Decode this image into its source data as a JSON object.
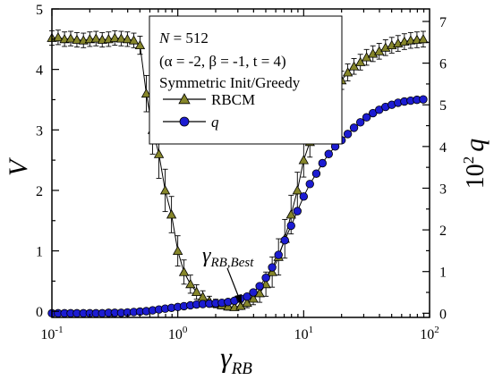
{
  "chart_data": {
    "type": "line",
    "xlabel": "γ",
    "xlabel_sub": "RB",
    "ylabel_left": "V",
    "ylabel_right_base": "10",
    "ylabel_right_exp": "2",
    "ylabel_right_var": "q",
    "x_scale": "log",
    "xlim": [
      0.1,
      100
    ],
    "ylim_left": [
      -0.1,
      5.0
    ],
    "ylim_right": [
      -0.1,
      7.3
    ],
    "x_ticks": [
      0.1,
      1,
      10,
      100
    ],
    "x_tick_labels": [
      {
        "base": "10",
        "exp": "-1"
      },
      {
        "base": "10",
        "exp": "0"
      },
      {
        "base": "10",
        "exp": "1"
      },
      {
        "base": "10",
        "exp": "2"
      }
    ],
    "y_ticks_left": [
      "0",
      "1",
      "2",
      "3",
      "4",
      "5"
    ],
    "y_ticks_right": [
      "0",
      "1",
      "2",
      "3",
      "4",
      "5",
      "6",
      "7"
    ],
    "legend": {
      "line1_prefix": "N = 512",
      "line2": "(α = -2, β = -1, t = 4)",
      "line3": "Symmetric Init/Greedy",
      "entries": [
        "RBCM",
        "q"
      ]
    },
    "annotation": {
      "text": "γ",
      "sub": "RB,Best",
      "x": 2.9,
      "y": 0.08
    },
    "colors": {
      "rbcm_fill": "#86862a",
      "q_fill": "#1c1cd2",
      "line": "#000000"
    },
    "series": [
      {
        "name": "RBCM",
        "axis": "left",
        "marker": "triangle",
        "x": [
          0.1,
          0.112,
          0.126,
          0.141,
          0.158,
          0.178,
          0.2,
          0.224,
          0.251,
          0.282,
          0.316,
          0.355,
          0.398,
          0.447,
          0.501,
          0.562,
          0.631,
          0.708,
          0.794,
          0.891,
          1.0,
          1.12,
          1.26,
          1.41,
          1.58,
          1.78,
          2.0,
          2.24,
          2.51,
          2.82,
          3.16,
          3.55,
          3.98,
          4.47,
          5.01,
          5.62,
          6.31,
          7.08,
          7.94,
          8.91,
          10.0,
          11.2,
          12.6,
          14.1,
          15.8,
          17.8,
          20.0,
          22.4,
          25.1,
          28.2,
          31.6,
          35.5,
          39.8,
          44.7,
          50.1,
          56.2,
          63.1,
          70.8,
          79.4,
          89.1
        ],
        "y": [
          4.52,
          4.53,
          4.5,
          4.51,
          4.49,
          4.48,
          4.5,
          4.51,
          4.49,
          4.5,
          4.52,
          4.51,
          4.5,
          4.48,
          4.4,
          3.6,
          3.0,
          2.6,
          2.0,
          1.6,
          1.0,
          0.65,
          0.45,
          0.32,
          0.24,
          0.17,
          0.13,
          0.1,
          0.08,
          0.07,
          0.09,
          0.14,
          0.21,
          0.3,
          0.45,
          0.65,
          0.9,
          1.2,
          1.6,
          2.0,
          2.5,
          2.8,
          3.05,
          3.3,
          3.5,
          3.68,
          3.82,
          3.95,
          4.05,
          4.12,
          4.2,
          4.26,
          4.3,
          4.36,
          4.4,
          4.43,
          4.46,
          4.48,
          4.49,
          4.5
        ],
        "err": [
          0.12,
          0.12,
          0.12,
          0.12,
          0.12,
          0.12,
          0.12,
          0.12,
          0.12,
          0.12,
          0.12,
          0.12,
          0.12,
          0.12,
          0.15,
          0.3,
          0.4,
          0.4,
          0.35,
          0.3,
          0.25,
          0.2,
          0.15,
          0.12,
          0.1,
          0.08,
          0.07,
          0.06,
          0.06,
          0.05,
          0.06,
          0.08,
          0.1,
          0.15,
          0.2,
          0.25,
          0.3,
          0.32,
          0.32,
          0.3,
          0.28,
          0.25,
          0.22,
          0.2,
          0.18,
          0.16,
          0.15,
          0.14,
          0.13,
          0.13,
          0.13,
          0.13,
          0.13,
          0.13,
          0.13,
          0.13,
          0.13,
          0.13,
          0.13,
          0.13
        ]
      },
      {
        "name": "q",
        "axis": "right",
        "marker": "circle",
        "x": [
          0.1,
          0.112,
          0.126,
          0.141,
          0.158,
          0.178,
          0.2,
          0.224,
          0.251,
          0.282,
          0.316,
          0.355,
          0.398,
          0.447,
          0.501,
          0.562,
          0.631,
          0.708,
          0.794,
          0.891,
          1.0,
          1.12,
          1.26,
          1.41,
          1.58,
          1.78,
          2.0,
          2.24,
          2.51,
          2.82,
          3.16,
          3.55,
          3.98,
          4.47,
          5.01,
          5.62,
          6.31,
          7.08,
          7.94,
          8.91,
          10.0,
          11.2,
          12.6,
          14.1,
          15.8,
          17.8,
          20.0,
          22.4,
          25.1,
          28.2,
          31.6,
          35.5,
          39.8,
          44.7,
          50.1,
          56.2,
          63.1,
          70.8,
          79.4,
          89.1
        ],
        "y": [
          0.0,
          0.0,
          0.0,
          0.0,
          0.0,
          0.0,
          0.0,
          0.0,
          0.0,
          0.01,
          0.01,
          0.01,
          0.02,
          0.03,
          0.04,
          0.05,
          0.07,
          0.09,
          0.11,
          0.13,
          0.15,
          0.17,
          0.19,
          0.21,
          0.22,
          0.23,
          0.24,
          0.25,
          0.27,
          0.3,
          0.35,
          0.4,
          0.5,
          0.65,
          0.85,
          1.1,
          1.4,
          1.75,
          2.1,
          2.45,
          2.8,
          3.1,
          3.35,
          3.6,
          3.82,
          4.0,
          4.15,
          4.3,
          4.45,
          4.58,
          4.7,
          4.8,
          4.88,
          4.95,
          5.0,
          5.05,
          5.08,
          5.1,
          5.12,
          5.13
        ]
      }
    ]
  }
}
